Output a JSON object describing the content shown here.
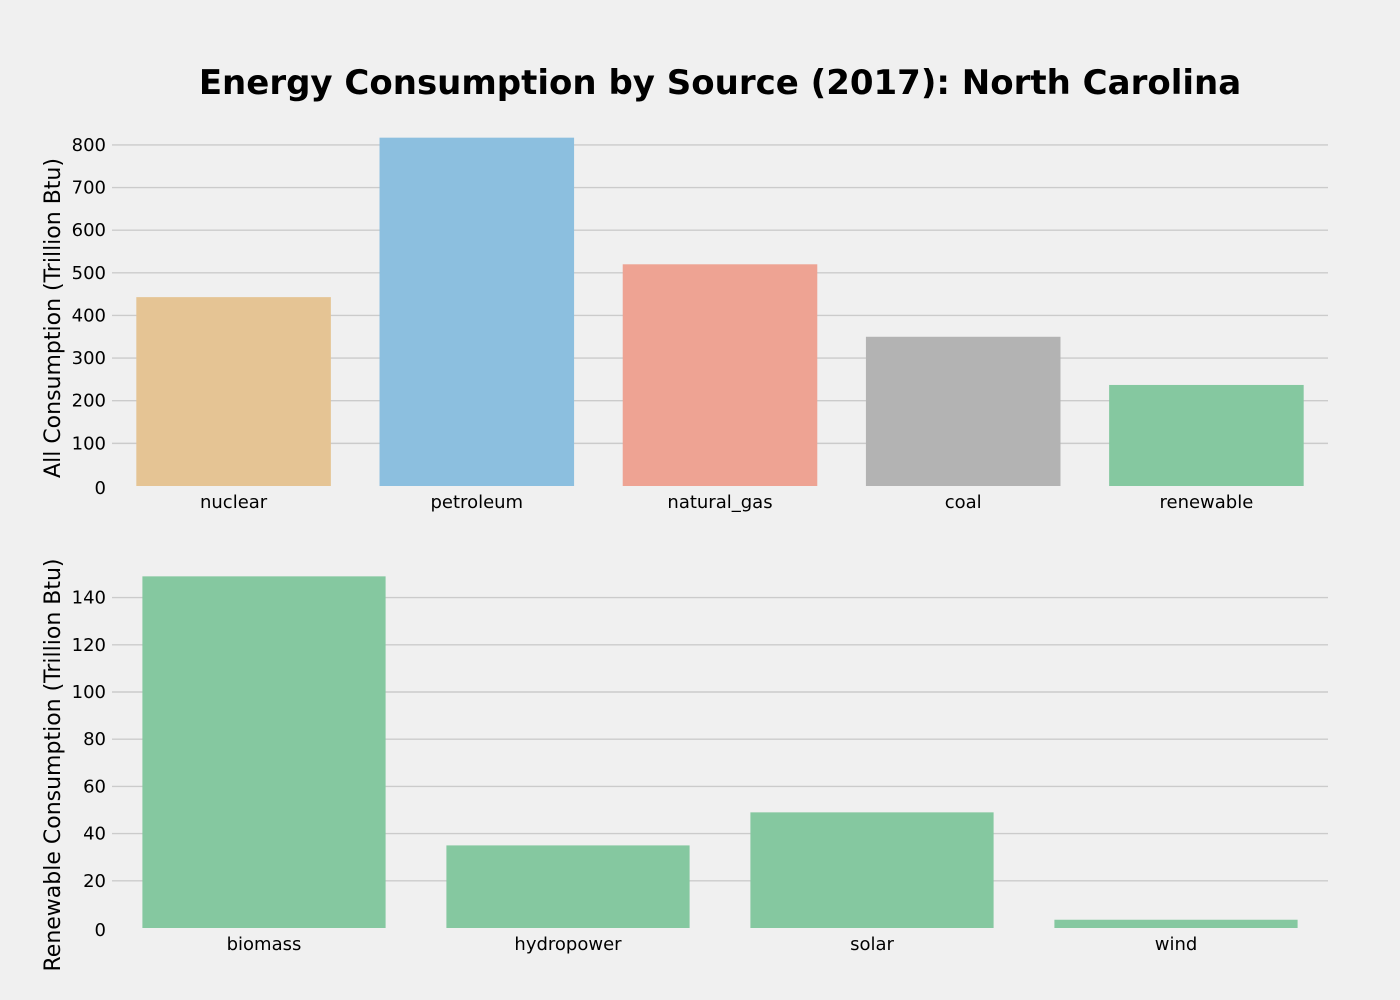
{
  "title": "Energy Consumption by Source (2017): North Carolina",
  "chart_data": [
    {
      "type": "bar",
      "categories": [
        "nuclear",
        "petroleum",
        "natural_gas",
        "coal",
        "renewable"
      ],
      "values": [
        443,
        817,
        520,
        350,
        237
      ],
      "colors": [
        "#e5c494",
        "#8cbfdf",
        "#eea393",
        "#b3b3b3",
        "#85c8a0"
      ],
      "xlabel": "",
      "ylabel": "All Consumption (Trillion Btu)",
      "yticks": [
        0,
        100,
        200,
        300,
        400,
        500,
        600,
        700,
        800
      ],
      "ylim": [
        0,
        835
      ],
      "grid": true
    },
    {
      "type": "bar",
      "categories": [
        "biomass",
        "hydropower",
        "solar",
        "wind"
      ],
      "values": [
        149,
        35,
        49,
        3.5
      ],
      "colors": [
        "#85c8a0",
        "#85c8a0",
        "#85c8a0",
        "#85c8a0"
      ],
      "xlabel": "",
      "ylabel": "Renewable Consumption (Trillion Btu)",
      "yticks": [
        0,
        20,
        40,
        60,
        80,
        100,
        120,
        140
      ],
      "ylim": [
        0,
        150
      ],
      "grid": true
    }
  ]
}
